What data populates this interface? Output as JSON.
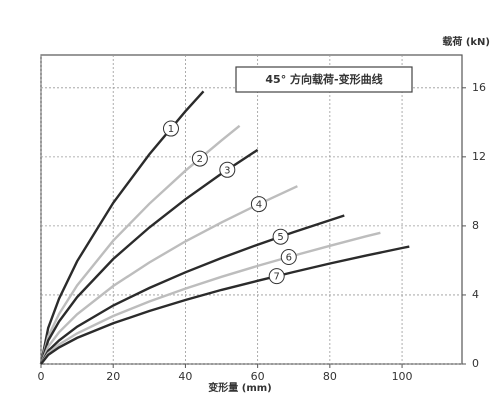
{
  "chart_data": {
    "type": "line",
    "title": "45° 方向载荷-变形曲线",
    "x_label": "变形量 (mm)",
    "y_label": "载荷 (kN)",
    "xlim": [
      0,
      116.6
    ],
    "ylim": [
      0,
      17.9
    ],
    "xticks": [
      0,
      20,
      40,
      60,
      80,
      100
    ],
    "yticks": [
      0,
      4,
      8,
      12,
      16
    ],
    "grid": true,
    "series": [
      {
        "name": "1",
        "color": "#2b2b2b",
        "x": [
          0,
          2,
          5,
          10,
          20,
          30,
          40,
          45
        ],
        "values": [
          0,
          2.09,
          3.79,
          5.95,
          9.33,
          12.14,
          14.64,
          15.8
        ]
      },
      {
        "name": "2",
        "color": "#bdbdbd",
        "x": [
          0,
          2,
          5,
          10,
          20,
          30,
          40,
          50,
          55
        ],
        "values": [
          0,
          1.6,
          2.9,
          4.55,
          7.14,
          9.28,
          11.2,
          12.95,
          13.8
        ]
      },
      {
        "name": "3",
        "color": "#2b2b2b",
        "x": [
          0,
          2,
          5,
          10,
          20,
          30,
          40,
          50,
          60
        ],
        "values": [
          0,
          1.36,
          2.47,
          3.87,
          6.08,
          7.91,
          9.54,
          11.03,
          12.4
        ]
      },
      {
        "name": "4",
        "color": "#bdbdbd",
        "x": [
          0,
          2,
          5,
          10,
          20,
          30,
          40,
          50,
          60,
          71
        ],
        "values": [
          0,
          1.01,
          1.84,
          2.88,
          4.52,
          5.88,
          7.1,
          8.2,
          9.23,
          10.3
        ]
      },
      {
        "name": "5",
        "color": "#2b2b2b",
        "x": [
          0,
          2,
          5,
          10,
          20,
          30,
          40,
          50,
          60,
          70,
          84
        ],
        "values": [
          0,
          0.76,
          1.37,
          2.16,
          3.39,
          4.4,
          5.31,
          6.14,
          6.91,
          7.64,
          8.6
        ]
      },
      {
        "name": "6",
        "color": "#bdbdbd",
        "x": [
          0,
          2,
          5,
          10,
          20,
          30,
          40,
          50,
          60,
          70,
          80,
          90,
          94
        ],
        "values": [
          0,
          0.62,
          1.13,
          1.77,
          2.78,
          3.62,
          4.37,
          5.05,
          5.68,
          6.28,
          6.85,
          7.4,
          7.6
        ]
      },
      {
        "name": "7",
        "color": "#2b2b2b",
        "x": [
          0,
          2,
          5,
          10,
          20,
          30,
          40,
          50,
          60,
          70,
          80,
          90,
          100,
          102
        ],
        "values": [
          0,
          0.53,
          0.96,
          1.51,
          2.36,
          3.07,
          3.71,
          4.29,
          4.82,
          5.33,
          5.82,
          6.28,
          6.72,
          6.8
        ]
      }
    ]
  }
}
